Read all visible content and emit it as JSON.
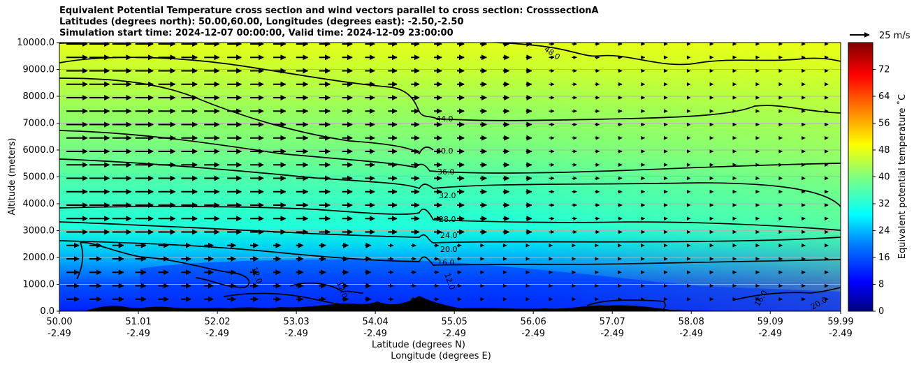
{
  "titles": {
    "line1": "Equivalent Potential Temperature cross section and wind vectors parallel to cross section: CrosssectionA",
    "line2": "Latitudes (degrees north): 50.00,60.00, Longitudes (degrees east): -2.50,-2.50",
    "line3": "Simulation start time: 2024-12-07 00:00:00, Valid time: 2024-12-09 23:00:00"
  },
  "chart_data": {
    "type": "heatmap",
    "ylabel": "Altitude (meters)",
    "xlabel": "Latitude (degrees N)",
    "xlabel2": "Longitude (degrees E)",
    "ylim": [
      0,
      10000
    ],
    "xlim": [
      50.0,
      59.99
    ],
    "y_ticks": [
      "0.0",
      "1000.0",
      "2000.0",
      "3000.0",
      "4000.0",
      "5000.0",
      "6000.0",
      "7000.0",
      "8000.0",
      "9000.0",
      "10000.0"
    ],
    "y_tick_values": [
      0,
      1000,
      2000,
      3000,
      4000,
      5000,
      6000,
      7000,
      8000,
      9000,
      10000
    ],
    "x_ticks_lat": [
      "50.00",
      "51.01",
      "52.02",
      "53.03",
      "54.04",
      "55.05",
      "56.06",
      "57.07",
      "58.08",
      "59.09",
      "59.99"
    ],
    "x_ticks_lon": [
      "-2.49",
      "-2.49",
      "-2.49",
      "-2.49",
      "-2.49",
      "-2.49",
      "-2.49",
      "-2.49",
      "-2.49",
      "-2.49",
      "-2.49"
    ],
    "grid": "horizontal",
    "colorbar": {
      "label": "Equivalent potential temperature ˚C",
      "range": [
        0,
        80
      ],
      "ticks": [
        "0",
        "8",
        "16",
        "24",
        "32",
        "40",
        "48",
        "56",
        "64",
        "72"
      ],
      "tick_values": [
        0,
        8,
        16,
        24,
        32,
        40,
        48,
        56,
        64,
        72
      ],
      "colormap": "jet"
    },
    "quiver_key": {
      "label": "25 m/s",
      "value": 25
    },
    "contours": [
      {
        "level": 12.0,
        "label": "12.0"
      },
      {
        "level": 16.0,
        "label": "16.0"
      },
      {
        "level": 20.0,
        "label": "20.0"
      },
      {
        "level": 24.0,
        "label": "24.0"
      },
      {
        "level": 28.0,
        "label": "28.0"
      },
      {
        "level": 32.0,
        "label": "32.0"
      },
      {
        "level": 36.0,
        "label": "36.0"
      },
      {
        "level": 40.0,
        "label": "40.0"
      },
      {
        "level": 44.0,
        "label": "44.0"
      },
      {
        "level": 48.0,
        "label": "48.0"
      }
    ],
    "contour_labels": [
      "44.0",
      "40.0",
      "36.0",
      "32.0",
      "28.0",
      "24.0",
      "20.0",
      "16.0",
      "12.0",
      "48.0",
      "16.0",
      "20.0",
      "12.0",
      "12.0"
    ]
  }
}
